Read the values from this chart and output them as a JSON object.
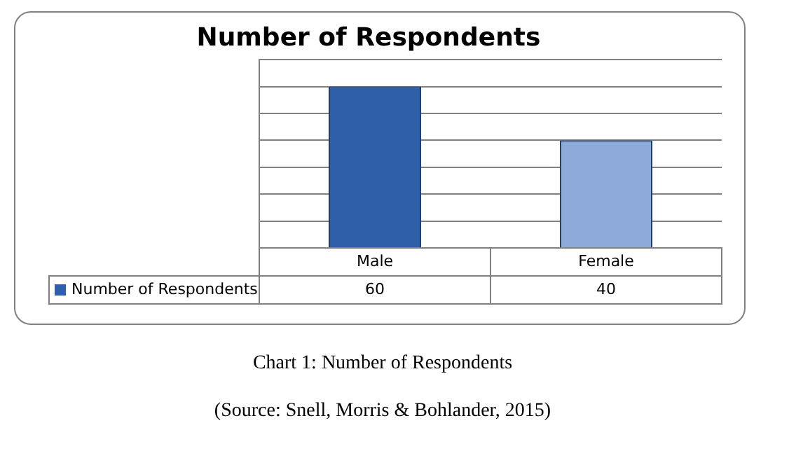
{
  "chart_data": {
    "type": "bar",
    "title": "Number of Respondents",
    "categories": [
      "Male",
      "Female"
    ],
    "series": [
      {
        "name": "Number of Respondents",
        "colors": [
          "#2f5fa8",
          "#8eaadb"
        ],
        "values": [
          60,
          40
        ]
      }
    ],
    "ylim": [
      0,
      70
    ],
    "grid": "y",
    "data_labels": true,
    "legend": "bottom",
    "tick_labels": "x",
    "annotations": [
      "Chart 1: Number of Respondents",
      "(Source: Snell, Morris & Bohlander, 2015)"
    ]
  }
}
